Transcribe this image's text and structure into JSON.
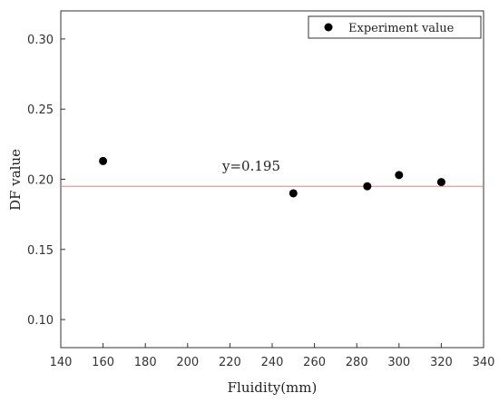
{
  "chart_data": {
    "type": "scatter",
    "xlabel": "Fluidity(mm)",
    "ylabel": "DF value",
    "xlim": [
      140,
      340
    ],
    "ylim": [
      0.08,
      0.32
    ],
    "xticks": [
      140,
      160,
      180,
      200,
      220,
      240,
      260,
      280,
      300,
      320,
      340
    ],
    "xtick_labels": [
      "140",
      "160",
      "180",
      "200",
      "220",
      "240",
      "260",
      "280",
      "300",
      "320",
      "340"
    ],
    "yticks": [
      0.1,
      0.15,
      0.2,
      0.25,
      0.3
    ],
    "ytick_labels": [
      "0.10",
      "0.15",
      "0.20",
      "0.25",
      "0.30"
    ],
    "grid": false,
    "legend": {
      "position": "top-right",
      "entries": [
        "Experiment value"
      ]
    },
    "series": [
      {
        "name": "Experiment value",
        "color": "#000000",
        "x": [
          160,
          250,
          285,
          300,
          320
        ],
        "y": [
          0.213,
          0.19,
          0.195,
          0.203,
          0.198
        ]
      }
    ],
    "reference_line": {
      "y": 0.195,
      "color": "#f08080",
      "label": "y=0.195"
    }
  }
}
